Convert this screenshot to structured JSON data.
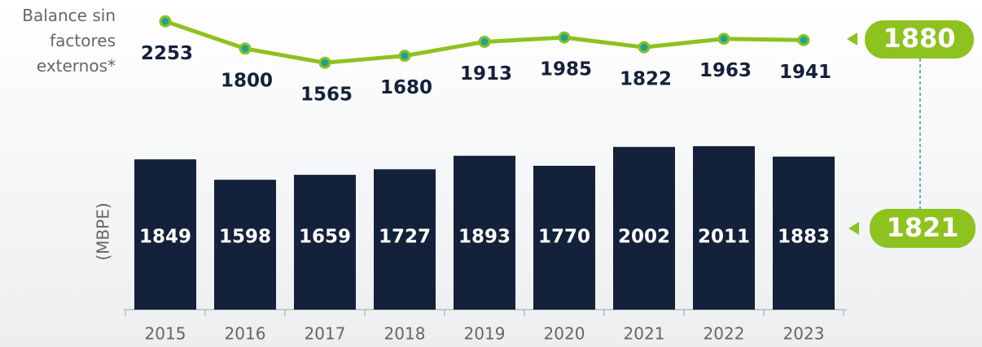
{
  "chart_data": {
    "type": "bar_line",
    "categories": [
      "2015",
      "2016",
      "2017",
      "2018",
      "2019",
      "2020",
      "2021",
      "2022",
      "2023"
    ],
    "series": [
      {
        "color": "#13213a",
        "values": [
          1849,
          1598,
          1659,
          1727,
          1893,
          1770,
          2002,
          2011,
          1883
        ]
      },
      {
        "name": "Balance sin factores externos*",
        "color": "#8dc21f",
        "axis": "y2",
        "values": [
          2253,
          1800,
          1565,
          1680,
          1913,
          1985,
          1822,
          1963,
          1941
        ]
      }
    ],
    "ylabel": "(MBPE)",
    "ylim": [
      0,
      2500
    ],
    "y2lim": [
      0,
      2500
    ],
    "annotations": [
      "1880",
      "1821"
    ]
  }
}
